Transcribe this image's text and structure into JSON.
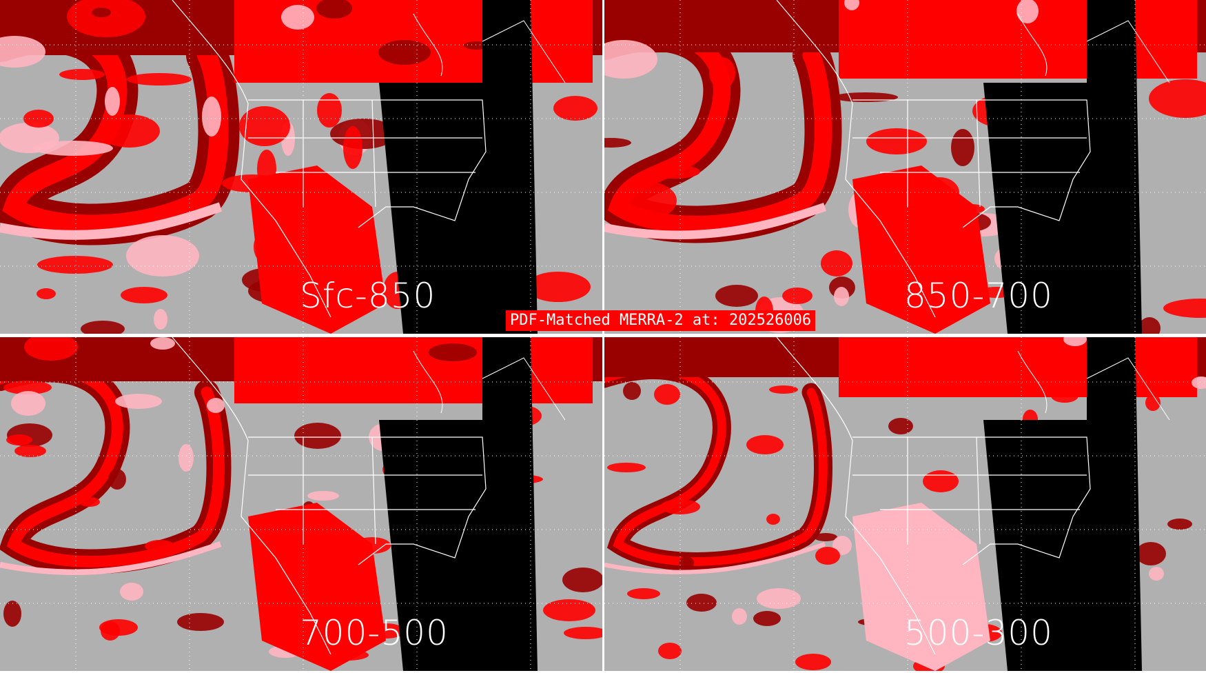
{
  "title": "PDF-Matched MERRA-2 at: 202526006",
  "panels": [
    {
      "label": "Sfc-850"
    },
    {
      "label": "850-700"
    },
    {
      "label": "700-500"
    },
    {
      "label": "500-300"
    }
  ],
  "colors": {
    "background_gray": "#b0b0b0",
    "dark_red": "#990000",
    "red": "#ff0000",
    "pink": "#ffb6c1",
    "night": "#000000",
    "outline": "#ffffff"
  }
}
